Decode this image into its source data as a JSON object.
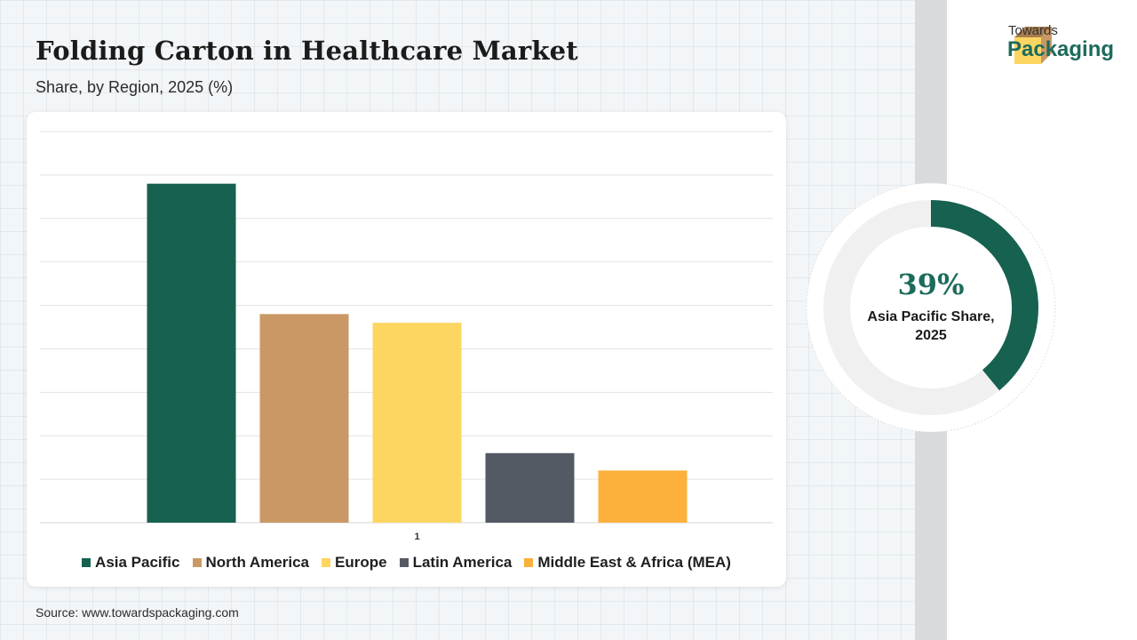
{
  "header": {
    "title": "Folding Carton in Healthcare Market",
    "subtitle": "Share, by Region, 2025 (%)"
  },
  "brand": {
    "line1": "Towards",
    "line2": "Packaging",
    "color": "#1d6b5c"
  },
  "chart_data": {
    "type": "bar",
    "categories": [
      "1"
    ],
    "series": [
      {
        "name": "Asia Pacific",
        "values": [
          39
        ],
        "color": "#16614f"
      },
      {
        "name": "North America",
        "values": [
          24
        ],
        "color": "#c99865"
      },
      {
        "name": "Europe",
        "values": [
          23
        ],
        "color": "#fdd662"
      },
      {
        "name": "Latin America",
        "values": [
          8
        ],
        "color": "#545a63"
      },
      {
        "name": "Middle East & Africa (MEA)",
        "values": [
          6
        ],
        "color": "#fbb13c"
      }
    ],
    "ylim": [
      0,
      45
    ],
    "grid": true,
    "legend": "bottom",
    "xlabel": "",
    "ylabel": ""
  },
  "highlight": {
    "value": "39%",
    "label_line1": "Asia Pacific Share,",
    "label_line2": "2025",
    "fraction": 0.39,
    "color": "#16614f",
    "track_color": "#f0f0f0"
  },
  "footer": {
    "source": "Source: www.towardspackaging.com"
  }
}
